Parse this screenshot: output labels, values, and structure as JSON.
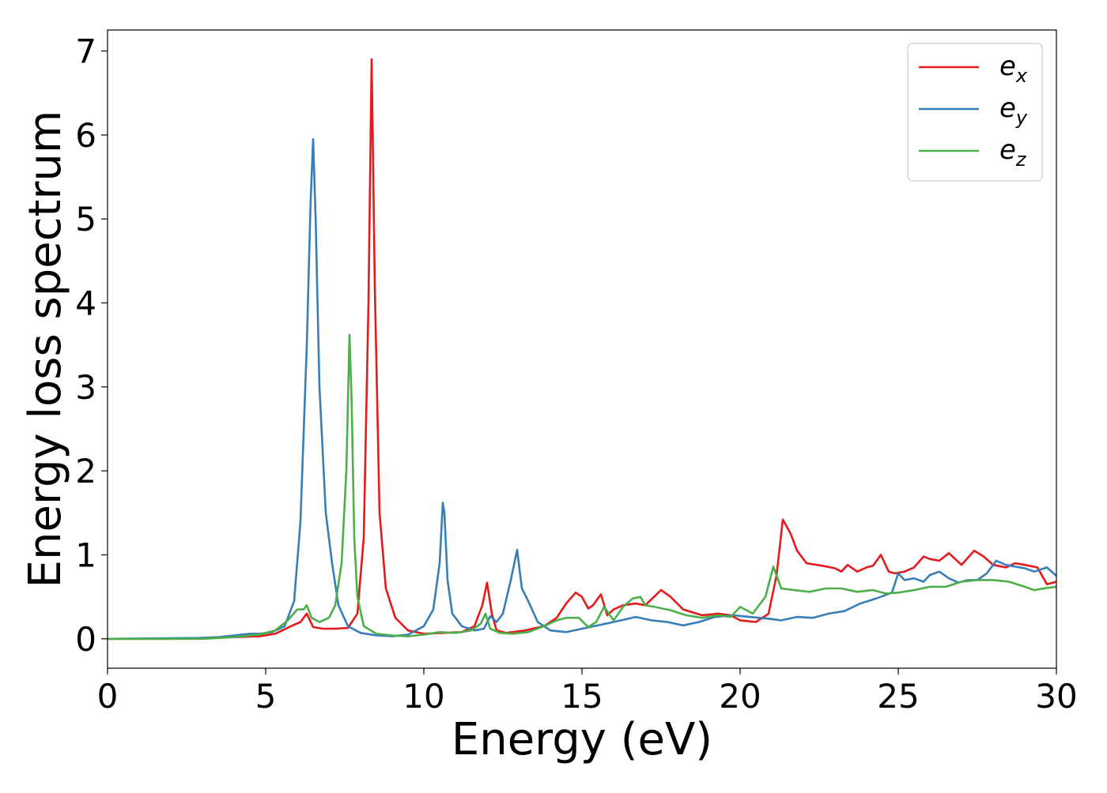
{
  "chart_data": {
    "type": "line",
    "title": "",
    "xlabel": "Energy (eV)",
    "ylabel": "Energy loss spectrum",
    "xlim": [
      0,
      30
    ],
    "ylim": [
      -0.35,
      7.25
    ],
    "xticks": [
      0,
      5,
      10,
      15,
      20,
      25,
      30
    ],
    "yticks": [
      0,
      1,
      2,
      3,
      4,
      5,
      6,
      7
    ],
    "grid": false,
    "legend_position": "top-right",
    "series": [
      {
        "name": "e_x",
        "legend_base": "e",
        "legend_sub": "x",
        "color": "#e41a1c",
        "x": [
          0,
          2,
          3,
          4,
          4.8,
          5.3,
          5.8,
          6.1,
          6.3,
          6.5,
          6.8,
          7.2,
          7.6,
          7.9,
          8.1,
          8.25,
          8.35,
          8.45,
          8.6,
          8.8,
          9.1,
          9.5,
          10.0,
          10.6,
          11.2,
          11.6,
          11.85,
          12.0,
          12.15,
          12.3,
          12.6,
          13.2,
          13.8,
          14.2,
          14.5,
          14.8,
          15.0,
          15.2,
          15.35,
          15.6,
          15.8,
          16.0,
          16.3,
          16.7,
          17.0,
          17.5,
          17.8,
          18.2,
          18.8,
          19.3,
          19.7,
          20.0,
          20.5,
          20.9,
          21.15,
          21.35,
          21.6,
          21.8,
          22.1,
          22.6,
          23.0,
          23.2,
          23.4,
          23.7,
          24.0,
          24.2,
          24.45,
          24.7,
          24.9,
          25.2,
          25.5,
          25.8,
          26.0,
          26.3,
          26.6,
          27.0,
          27.4,
          27.7,
          28.0,
          28.4,
          28.7,
          29.0,
          29.4,
          29.7,
          30.0
        ],
        "y": [
          0.0,
          0.0,
          0.01,
          0.02,
          0.03,
          0.06,
          0.15,
          0.2,
          0.3,
          0.14,
          0.12,
          0.12,
          0.13,
          0.3,
          1.2,
          4.0,
          6.9,
          4.2,
          1.5,
          0.6,
          0.25,
          0.1,
          0.06,
          0.07,
          0.08,
          0.15,
          0.4,
          0.67,
          0.3,
          0.1,
          0.07,
          0.1,
          0.15,
          0.25,
          0.42,
          0.55,
          0.5,
          0.36,
          0.4,
          0.53,
          0.28,
          0.35,
          0.4,
          0.42,
          0.4,
          0.58,
          0.5,
          0.35,
          0.28,
          0.3,
          0.28,
          0.22,
          0.2,
          0.3,
          0.75,
          1.42,
          1.25,
          1.05,
          0.9,
          0.87,
          0.84,
          0.8,
          0.88,
          0.8,
          0.85,
          0.87,
          1.0,
          0.8,
          0.78,
          0.8,
          0.85,
          0.98,
          0.95,
          0.93,
          1.02,
          0.88,
          1.05,
          0.98,
          0.88,
          0.85,
          0.9,
          0.88,
          0.85,
          0.65,
          0.68
        ]
      },
      {
        "name": "e_y",
        "legend_base": "e",
        "legend_sub": "y",
        "color": "#377eb8",
        "x": [
          0,
          3,
          3.5,
          4.0,
          4.5,
          4.8,
          5.2,
          5.6,
          5.9,
          6.1,
          6.3,
          6.42,
          6.5,
          6.58,
          6.7,
          6.9,
          7.1,
          7.3,
          7.6,
          8.0,
          8.5,
          9.0,
          9.5,
          10.0,
          10.3,
          10.5,
          10.6,
          10.65,
          10.75,
          10.9,
          11.2,
          11.6,
          11.9,
          12.1,
          12.3,
          12.5,
          12.75,
          12.95,
          13.1,
          13.3,
          13.6,
          14.0,
          14.5,
          15.0,
          15.5,
          16.0,
          16.7,
          17.2,
          17.7,
          18.2,
          18.7,
          19.2,
          19.8,
          20.3,
          20.9,
          21.3,
          21.8,
          22.3,
          22.8,
          23.3,
          23.8,
          24.3,
          24.8,
          25.0,
          25.2,
          25.5,
          25.8,
          26.0,
          26.3,
          26.6,
          26.9,
          27.2,
          27.5,
          27.8,
          28.1,
          28.4,
          28.7,
          29.0,
          29.3,
          29.7,
          30.0
        ],
        "y": [
          0.0,
          0.01,
          0.02,
          0.04,
          0.06,
          0.06,
          0.08,
          0.15,
          0.45,
          1.4,
          3.5,
          5.2,
          5.95,
          5.0,
          3.0,
          1.5,
          0.9,
          0.4,
          0.15,
          0.07,
          0.04,
          0.03,
          0.05,
          0.15,
          0.35,
          0.9,
          1.62,
          1.5,
          0.7,
          0.3,
          0.15,
          0.1,
          0.12,
          0.27,
          0.2,
          0.3,
          0.7,
          1.06,
          0.6,
          0.45,
          0.2,
          0.1,
          0.08,
          0.12,
          0.16,
          0.2,
          0.26,
          0.22,
          0.2,
          0.16,
          0.2,
          0.26,
          0.28,
          0.26,
          0.24,
          0.22,
          0.26,
          0.25,
          0.3,
          0.33,
          0.42,
          0.48,
          0.55,
          0.78,
          0.7,
          0.72,
          0.68,
          0.76,
          0.8,
          0.72,
          0.67,
          0.7,
          0.7,
          0.78,
          0.93,
          0.88,
          0.86,
          0.84,
          0.8,
          0.85,
          0.75
        ]
      },
      {
        "name": "e_z",
        "legend_base": "e",
        "legend_sub": "z",
        "color": "#4daf4a",
        "x": [
          0,
          3,
          4.0,
          4.8,
          5.3,
          5.7,
          6.0,
          6.2,
          6.3,
          6.45,
          6.7,
          7.0,
          7.2,
          7.4,
          7.55,
          7.65,
          7.72,
          7.8,
          7.9,
          8.1,
          8.5,
          9.0,
          9.5,
          10.0,
          10.5,
          11.0,
          11.5,
          11.8,
          11.95,
          12.1,
          12.4,
          12.8,
          13.3,
          13.8,
          14.2,
          14.5,
          14.9,
          15.2,
          15.45,
          15.7,
          16.0,
          16.3,
          16.6,
          16.85,
          17.0,
          17.3,
          17.8,
          18.3,
          18.8,
          19.3,
          19.7,
          20.0,
          20.4,
          20.8,
          21.05,
          21.3,
          21.7,
          22.2,
          22.7,
          23.2,
          23.7,
          24.2,
          24.6,
          25.0,
          25.5,
          26.0,
          26.5,
          27.0,
          27.5,
          28.0,
          28.5,
          29.0,
          29.3,
          29.6,
          30.0
        ],
        "y": [
          0.0,
          0.0,
          0.02,
          0.05,
          0.1,
          0.22,
          0.35,
          0.35,
          0.4,
          0.25,
          0.2,
          0.25,
          0.4,
          0.9,
          2.0,
          3.62,
          2.8,
          1.2,
          0.5,
          0.15,
          0.06,
          0.04,
          0.03,
          0.05,
          0.08,
          0.07,
          0.1,
          0.18,
          0.3,
          0.12,
          0.07,
          0.06,
          0.08,
          0.15,
          0.22,
          0.25,
          0.25,
          0.14,
          0.2,
          0.38,
          0.22,
          0.38,
          0.48,
          0.5,
          0.4,
          0.38,
          0.34,
          0.28,
          0.25,
          0.28,
          0.26,
          0.38,
          0.3,
          0.5,
          0.86,
          0.6,
          0.58,
          0.56,
          0.6,
          0.6,
          0.56,
          0.58,
          0.54,
          0.55,
          0.58,
          0.62,
          0.62,
          0.68,
          0.7,
          0.7,
          0.68,
          0.62,
          0.58,
          0.6,
          0.62
        ]
      }
    ]
  }
}
